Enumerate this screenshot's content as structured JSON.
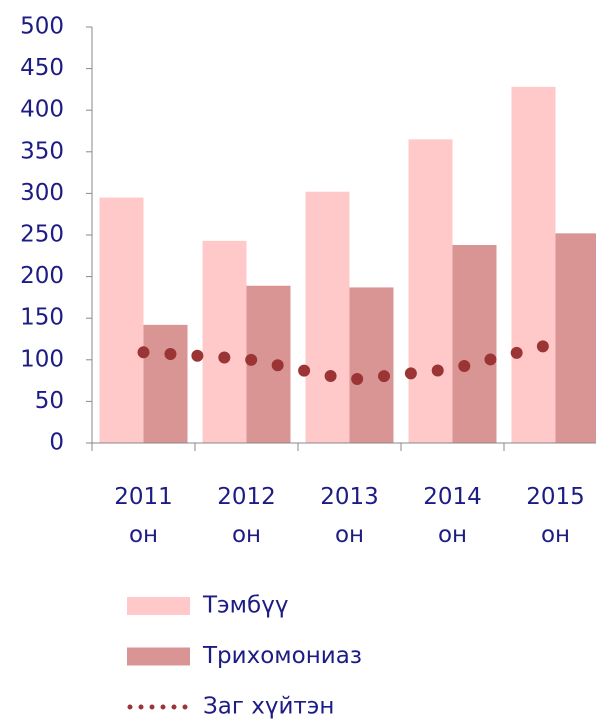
{
  "chart_data": {
    "type": "bar",
    "categories": [
      "2011 он",
      "2012 он",
      "2013 он",
      "2014 он",
      "2015 он"
    ],
    "series": [
      {
        "name": "Тэмбүү",
        "color": "#ffc9c9",
        "values": [
          295,
          243,
          302,
          365,
          428
        ]
      },
      {
        "name": "Трихомониаз",
        "color": "#d99594",
        "values": [
          142,
          189,
          187,
          238,
          252
        ]
      },
      {
        "name": "Заг хүйтэн",
        "type": "line",
        "color": "#9b3535",
        "values": [
          109,
          101,
          76,
          89,
          120
        ]
      }
    ],
    "ylim": [
      0,
      500
    ],
    "yticks": [
      0,
      50,
      100,
      150,
      200,
      250,
      300,
      350,
      400,
      450,
      500
    ],
    "legend": "bottom"
  }
}
